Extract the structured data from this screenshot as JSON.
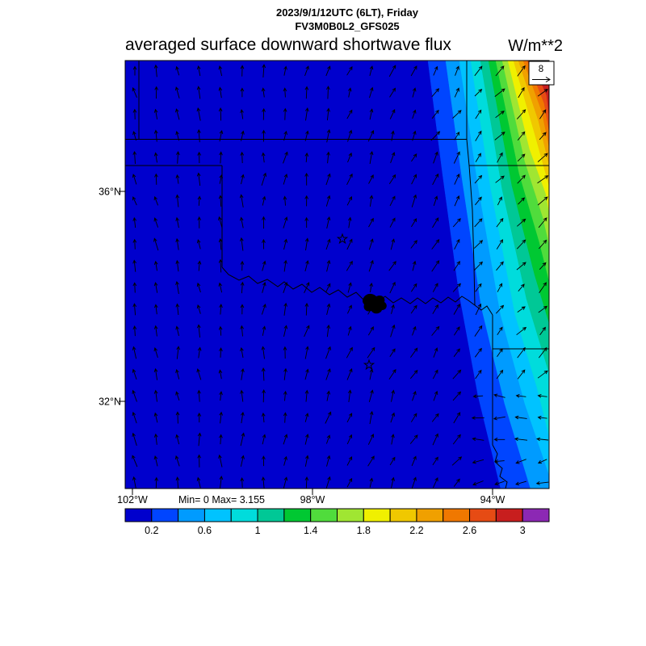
{
  "header": {
    "datetime_line": "2023/9/1/12UTC (6LT), Friday",
    "model_line": "FV3M0B0L2_GFS025",
    "title": "averaged surface downward shortwave flux",
    "units": "W/m**2"
  },
  "map": {
    "ref_vector_label": "8",
    "lat_tick_labels": [
      "36°N",
      "32°N"
    ],
    "lon_tick_labels": [
      "102°W",
      "98°W",
      "94°W"
    ],
    "stats_line": "Min= 0 Max= 3.155"
  },
  "colorbar": {
    "tick_labels": [
      "0.2",
      "0.6",
      "1",
      "1.4",
      "1.8",
      "2.2",
      "2.6",
      "3"
    ],
    "segment_colors": [
      "#0000cd",
      "#0045ff",
      "#009bff",
      "#00c3ff",
      "#00dcdc",
      "#00c896",
      "#00c832",
      "#50dc3c",
      "#a0e632",
      "#f0f000",
      "#f0c800",
      "#f0a000",
      "#f07800",
      "#e64b14",
      "#c81e1e",
      "#8c28b4"
    ]
  },
  "chart_data": {
    "type": "heatmap",
    "subtype": "filled-contour map with wind vector overlay",
    "title": "averaged surface downward shortwave flux",
    "units": "W/m**2",
    "valid_time": "2023/9/1/12UTC (6LT), Friday",
    "model": "FV3M0B0L2_GFS025",
    "stats": {
      "min": 0,
      "max": 3.155
    },
    "contour_interval": 0.2,
    "levels": [
      0.2,
      0.4,
      0.6,
      0.8,
      1,
      1.2,
      1.4,
      1.6,
      1.8,
      2,
      2.2,
      2.4,
      2.6,
      2.8,
      3
    ],
    "colorbar_tick_values": [
      0.2,
      0.6,
      1,
      1.4,
      1.8,
      2.2,
      2.6,
      3
    ],
    "x_axis": {
      "type": "longitude",
      "tick_labels": [
        "102°W",
        "98°W",
        "94°W"
      ]
    },
    "y_axis": {
      "type": "latitude",
      "tick_labels": [
        "36°N",
        "32°N"
      ]
    },
    "wind_overlay": {
      "reference_magnitude": 8
    },
    "region_hint": "South-central United States (Oklahoma / North Texas, state borders and Red River drawn)",
    "field_description": "Flux is in the lowest bin (~0 W/m**2, dark blue) over nearly the whole domain; values rise in tight diagonal bands toward the northeast/east edge, exceeding 3 W/m**2 at the top-right corner (max 3.155)."
  }
}
